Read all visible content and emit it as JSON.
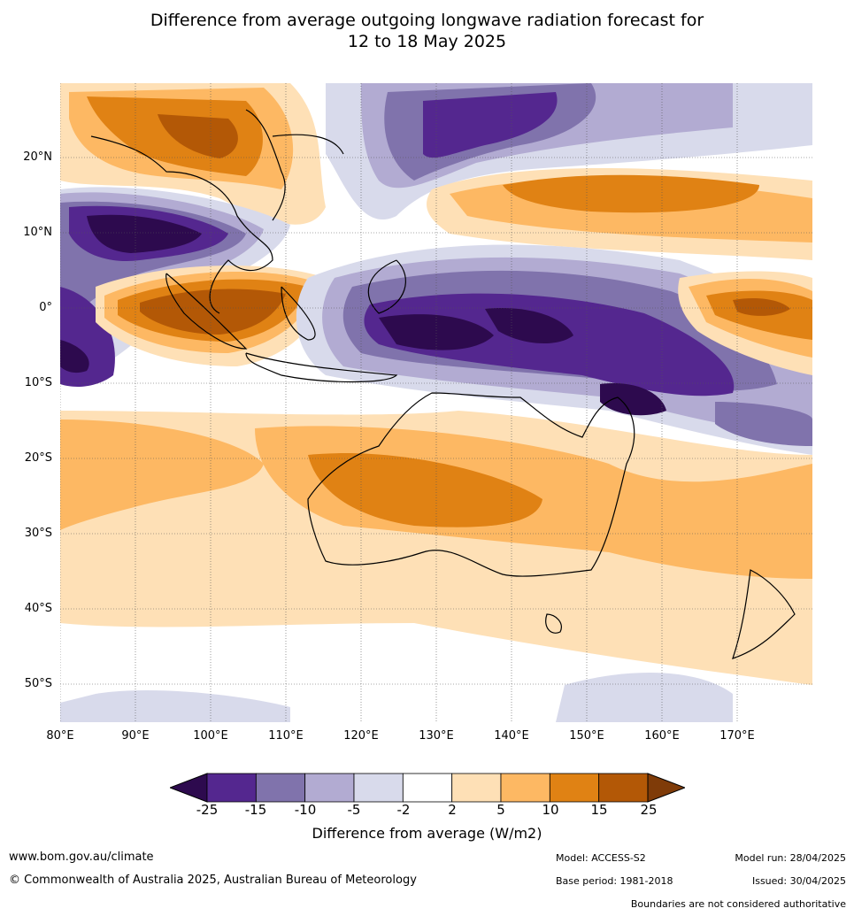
{
  "title": {
    "line1": "Difference from average outgoing longwave radiation forecast for",
    "line2": "12 to 18 May 2025"
  },
  "map": {
    "lat_labels": [
      "20°N",
      "10°N",
      "0°",
      "10°S",
      "20°S",
      "30°S",
      "40°S",
      "50°S"
    ],
    "lon_labels": [
      "80°E",
      "90°E",
      "100°E",
      "110°E",
      "120°E",
      "130°E",
      "140°E",
      "150°E",
      "160°E",
      "170°E"
    ]
  },
  "colorbar": {
    "ticks": [
      "-25",
      "-15",
      "-10",
      "-5",
      "-2",
      "2",
      "5",
      "10",
      "15",
      "25"
    ],
    "colors": [
      "#2d0a4e",
      "#54278f",
      "#8073ac",
      "#b2abd2",
      "#d8daeb",
      "#ffffff",
      "#fee0b6",
      "#fdb863",
      "#e08214",
      "#b35806",
      "#7f3b08"
    ],
    "title": "Difference from average (W/m2)"
  },
  "footer": {
    "url": "www.bom.gov.au/climate",
    "copyright": "© Commonwealth of Australia 2025, Australian Bureau of Meteorology",
    "model": "Model: ACCESS-S2",
    "base_period": "Base period: 1981-2018",
    "model_run": "Model run: 28/04/2025",
    "issued": "Issued: 30/04/2025",
    "disclaimer": "Boundaries are not considered authoritative"
  }
}
